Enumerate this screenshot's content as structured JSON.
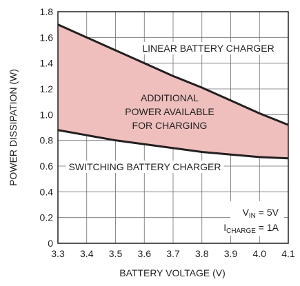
{
  "chart_data": {
    "type": "area",
    "xlabel": "BATTERY VOLTAGE (V)",
    "ylabel": "POWER DISSIPATION (W)",
    "xlim": [
      3.3,
      4.1
    ],
    "ylim": [
      0,
      1.8
    ],
    "x_ticks": [
      "3.3",
      "3.4",
      "3.5",
      "3.6",
      "3.7",
      "3.8",
      "3.9",
      "4.0",
      "4.1"
    ],
    "y_ticks": [
      "0",
      "0.2",
      "0.4",
      "0.6",
      "0.8",
      "1.0",
      "1.2",
      "1.4",
      "1.6",
      "1.8"
    ],
    "grid": true,
    "fill_color": "#eebfbd",
    "line_color": "#231f20",
    "series": [
      {
        "name": "LINEAR BATTERY CHARGER",
        "x": [
          3.3,
          3.4,
          3.5,
          3.6,
          3.7,
          3.8,
          3.9,
          4.0,
          4.1
        ],
        "values": [
          1.7,
          1.6,
          1.5,
          1.4,
          1.3,
          1.21,
          1.11,
          1.01,
          0.92
        ]
      },
      {
        "name": "SWITCHING BATTERY CHARGER",
        "x": [
          3.3,
          3.4,
          3.5,
          3.6,
          3.7,
          3.8,
          3.9,
          4.0,
          4.1
        ],
        "values": [
          0.88,
          0.84,
          0.8,
          0.77,
          0.74,
          0.71,
          0.69,
          0.67,
          0.66
        ]
      }
    ],
    "annotations": {
      "region_lines": [
        "ADDITIONAL",
        "POWER AVAILABLE",
        "FOR CHARGING"
      ],
      "conditions": [
        {
          "main": "V",
          "sub": "IN",
          "rest": " = 5V"
        },
        {
          "main": "I",
          "sub": "CHARGE",
          "rest": " = 1A"
        }
      ]
    }
  }
}
